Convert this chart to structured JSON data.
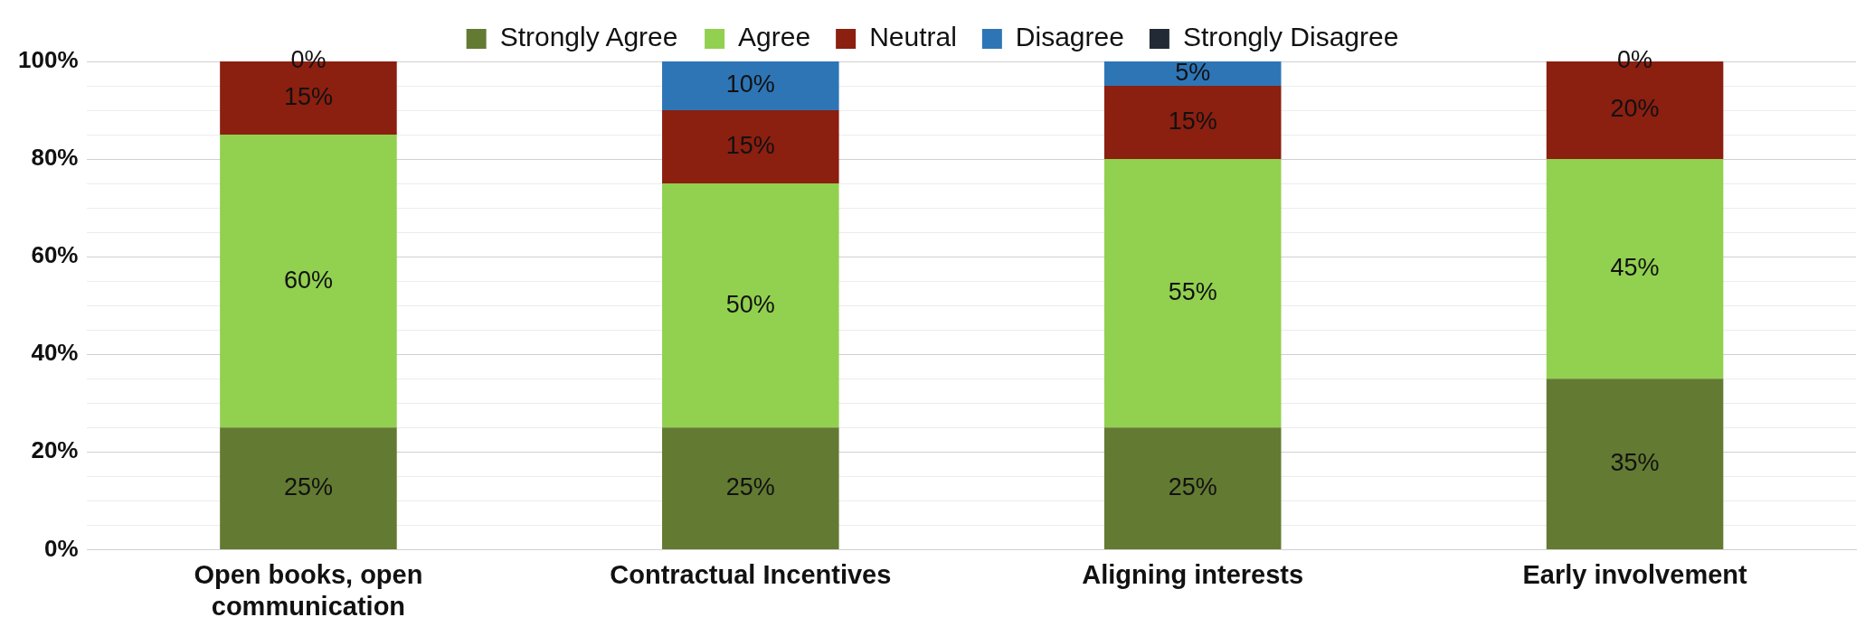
{
  "chart_data": {
    "type": "bar",
    "stacked": true,
    "legend": "top",
    "grid": "y",
    "categories": [
      "Open books, open communication",
      "Contractual Incentives",
      "Aligning interests",
      "Early involvement"
    ],
    "ylim": [
      0,
      100
    ],
    "yticks": [
      {
        "value": 0,
        "label": "0%"
      },
      {
        "value": 5,
        "label": null
      },
      {
        "value": 10,
        "label": null
      },
      {
        "value": 15,
        "label": null
      },
      {
        "value": 20,
        "label": "20%"
      },
      {
        "value": 25,
        "label": null
      },
      {
        "value": 30,
        "label": null
      },
      {
        "value": 35,
        "label": null
      },
      {
        "value": 40,
        "label": "40%"
      },
      {
        "value": 45,
        "label": null
      },
      {
        "value": 50,
        "label": null
      },
      {
        "value": 55,
        "label": null
      },
      {
        "value": 60,
        "label": "60%"
      },
      {
        "value": 65,
        "label": null
      },
      {
        "value": 70,
        "label": null
      },
      {
        "value": 75,
        "label": null
      },
      {
        "value": 80,
        "label": "80%"
      },
      {
        "value": 85,
        "label": null
      },
      {
        "value": 90,
        "label": null
      },
      {
        "value": 95,
        "label": null
      },
      {
        "value": 100,
        "label": "100%"
      }
    ],
    "series": [
      {
        "name": "Strongly Agree",
        "color": "#637a32",
        "values": [
          25,
          25,
          25,
          35
        ],
        "value_labels": [
          "25%",
          "25%",
          "25%",
          "35%"
        ]
      },
      {
        "name": "Agree",
        "color": "#92d050",
        "values": [
          60,
          50,
          55,
          45
        ],
        "value_labels": [
          "60%",
          "50%",
          "55%",
          "45%"
        ]
      },
      {
        "name": "Neutral",
        "color": "#8b1f10",
        "values": [
          15,
          15,
          15,
          20
        ],
        "value_labels": [
          "15%",
          "15%",
          "15%",
          "20%"
        ]
      },
      {
        "name": "Disagree",
        "color": "#2e75b6",
        "values": [
          0,
          10,
          5,
          0
        ],
        "value_labels": [
          "0%",
          "10%",
          "5%",
          "0%"
        ]
      },
      {
        "name": "Strongly Disagree",
        "color": "#222a35",
        "values": [
          0,
          0,
          0,
          0
        ]
      }
    ]
  }
}
